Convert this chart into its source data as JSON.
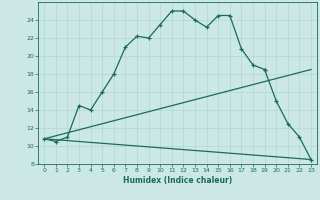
{
  "xlabel": "Humidex (Indice chaleur)",
  "background_color": "#cce8e4",
  "grid_color": "#b0d8d0",
  "line_color": "#1a6b5a",
  "xlim": [
    -0.5,
    23.5
  ],
  "ylim": [
    8,
    26
  ],
  "xticks": [
    0,
    1,
    2,
    3,
    4,
    5,
    6,
    7,
    8,
    9,
    10,
    11,
    12,
    13,
    14,
    15,
    16,
    17,
    18,
    19,
    20,
    21,
    22,
    23
  ],
  "yticks": [
    8,
    10,
    12,
    14,
    16,
    18,
    20,
    22,
    24
  ],
  "line1_x": [
    0,
    1,
    2,
    3,
    4,
    5,
    6,
    7,
    8,
    9,
    10,
    11,
    12,
    13,
    14,
    15,
    16,
    17,
    18,
    19
  ],
  "line1_y": [
    10.8,
    10.5,
    11.0,
    14.5,
    14.0,
    16.0,
    18.0,
    21.0,
    22.2,
    22.0,
    23.5,
    25.0,
    25.0,
    24.0,
    23.2,
    24.5,
    24.5,
    20.8,
    19.0,
    18.5
  ],
  "line2_x": [
    19,
    20,
    21,
    22,
    23
  ],
  "line2_y": [
    18.5,
    15.0,
    12.5,
    11.0,
    8.5
  ],
  "line3_x": [
    0,
    23
  ],
  "line3_y": [
    10.8,
    8.5
  ],
  "line4_x": [
    0,
    23
  ],
  "line4_y": [
    10.8,
    18.5
  ]
}
